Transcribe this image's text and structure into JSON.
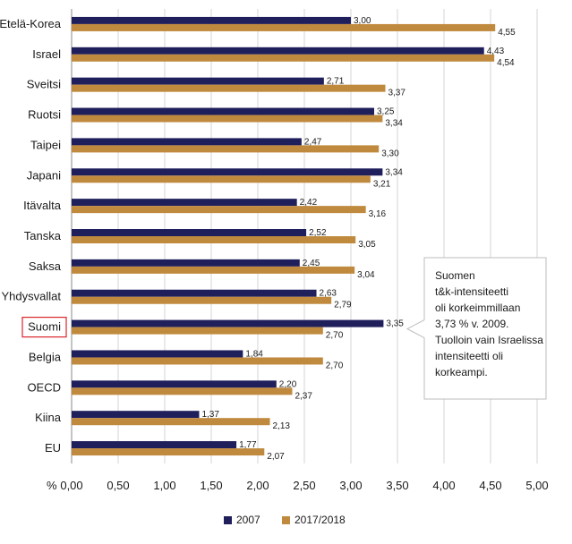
{
  "chart_data": {
    "type": "bar",
    "orientation": "horizontal",
    "categories": [
      "Etelä-Korea",
      "Israel",
      "Sveitsi",
      "Ruotsi",
      "Taipei",
      "Japani",
      "Itävalta",
      "Tanska",
      "Saksa",
      "Yhdysvallat",
      "Suomi",
      "Belgia",
      "OECD",
      "Kiina",
      "EU"
    ],
    "series": [
      {
        "name": "2007",
        "color": "#1f1f5c",
        "values": [
          3.0,
          4.43,
          2.71,
          3.25,
          2.47,
          3.34,
          2.42,
          2.52,
          2.45,
          2.63,
          3.35,
          1.84,
          2.2,
          1.37,
          1.77
        ],
        "labels": [
          "3,00",
          "4,43",
          "2,71",
          "3,25",
          "2,47",
          "3,34",
          "2,42",
          "2,52",
          "2,45",
          "2,63",
          "3,35",
          "1,84",
          "2,20",
          "1,37",
          "1,77"
        ]
      },
      {
        "name": "2017/2018",
        "color": "#c08a3e",
        "values": [
          4.55,
          4.54,
          3.37,
          3.34,
          3.3,
          3.21,
          3.16,
          3.05,
          3.04,
          2.79,
          2.7,
          2.7,
          2.37,
          2.13,
          2.07
        ],
        "labels": [
          "4,55",
          "4,54",
          "3,37",
          "3,34",
          "3,30",
          "3,21",
          "3,16",
          "3,05",
          "3,04",
          "2,79",
          "2,70",
          "2,70",
          "2,37",
          "2,13",
          "2,07"
        ]
      }
    ],
    "xlim": [
      0,
      5
    ],
    "xticks": [
      0,
      0.5,
      1,
      1.5,
      2,
      2.5,
      3,
      3.5,
      4,
      4.5,
      5
    ],
    "xtick_labels": [
      "0,00",
      "0,50",
      "1,00",
      "1,50",
      "2,00",
      "2,50",
      "3,00",
      "3,50",
      "4,00",
      "4,50",
      "5,00"
    ],
    "xlabel": "%",
    "grid": true,
    "highlight_category": "Suomi",
    "highlight_color": "#d9262c",
    "legend_position": "bottom",
    "annotation": {
      "target": "Suomi",
      "lines": [
        "Suomen",
        "t&k-intensiteetti",
        "oli korkeimmillaan",
        "3,73 % v. 2009.",
        "Tuolloin vain Israelissa",
        " intensiteetti oli",
        "korkeampi."
      ]
    }
  }
}
